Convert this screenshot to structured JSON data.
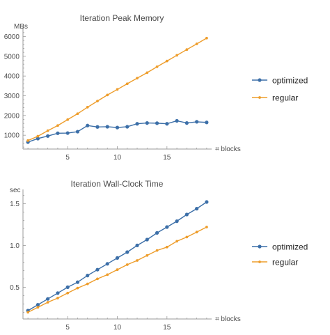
{
  "colors": {
    "optimized": "#3c6fa8",
    "regular": "#ee9d2b",
    "axis": "#9a9a9a",
    "text": "#4a4a4a"
  },
  "chart_data": [
    {
      "type": "line",
      "title": "Iteration Peak Memory",
      "xlabel": "⌗ blocks",
      "ylabel": "MBs",
      "xlim": [
        0.5,
        19.5
      ],
      "ylim": [
        300,
        6300
      ],
      "xticks": [
        5,
        10,
        15
      ],
      "xticks_labels": [
        "5",
        "10",
        "15"
      ],
      "yticks": [
        1000,
        2000,
        3000,
        4000,
        5000,
        6000
      ],
      "yticks_labels": [
        "1000",
        "2000",
        "3000",
        "4000",
        "5000",
        "6000"
      ],
      "x": [
        1,
        2,
        3,
        4,
        5,
        6,
        7,
        8,
        9,
        10,
        11,
        12,
        13,
        14,
        15,
        16,
        17,
        18,
        19
      ],
      "series": [
        {
          "name": "optimized",
          "values": [
            650,
            830,
            960,
            1100,
            1110,
            1180,
            1490,
            1420,
            1430,
            1390,
            1430,
            1580,
            1620,
            1610,
            1580,
            1730,
            1620,
            1680,
            1650
          ]
        },
        {
          "name": "regular",
          "values": [
            730,
            950,
            1230,
            1490,
            1790,
            2090,
            2420,
            2730,
            3040,
            3320,
            3610,
            3890,
            4170,
            4470,
            4760,
            5050,
            5340,
            5630,
            5920
          ]
        }
      ],
      "grid": false,
      "legend": "right"
    },
    {
      "type": "line",
      "title": "Iteration Wall-Clock Time",
      "xlabel": "⌗ blocks",
      "ylabel": "sec",
      "xlim": [
        0.5,
        19.5
      ],
      "ylim": [
        0.12,
        1.62
      ],
      "xticks": [
        5,
        10,
        15
      ],
      "xticks_labels": [
        "5",
        "10",
        "15"
      ],
      "yticks": [
        0.5,
        1.0,
        1.5
      ],
      "yticks_labels": [
        "0.5",
        "1.0",
        "1.5"
      ],
      "x": [
        1,
        2,
        3,
        4,
        5,
        6,
        7,
        8,
        9,
        10,
        11,
        12,
        13,
        14,
        15,
        16,
        17,
        18,
        19
      ],
      "series": [
        {
          "name": "optimized",
          "values": [
            0.22,
            0.29,
            0.36,
            0.43,
            0.5,
            0.56,
            0.64,
            0.71,
            0.78,
            0.85,
            0.92,
            1.0,
            1.07,
            1.15,
            1.22,
            1.29,
            1.37,
            1.44,
            1.52
          ]
        },
        {
          "name": "regular",
          "values": [
            0.2,
            0.26,
            0.32,
            0.37,
            0.43,
            0.49,
            0.54,
            0.6,
            0.65,
            0.71,
            0.77,
            0.82,
            0.88,
            0.94,
            0.98,
            1.05,
            1.1,
            1.16,
            1.22
          ]
        }
      ],
      "grid": false,
      "legend": "right"
    }
  ]
}
